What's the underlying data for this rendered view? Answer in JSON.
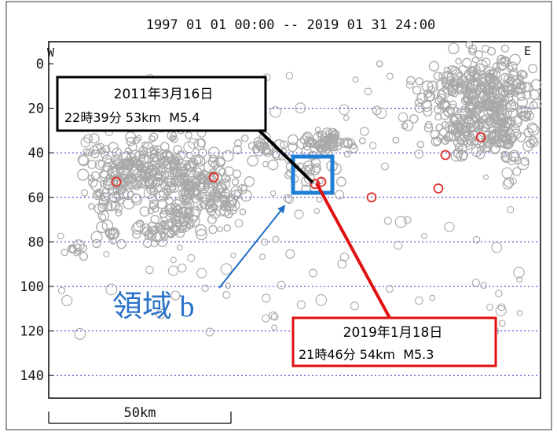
{
  "chart_data": {
    "type": "scatter",
    "title": "1997 01 01 00:00 -- 2019 01 31 24:00",
    "direction_labels": {
      "left": "W",
      "right": "E"
    },
    "y_ticks": [
      0,
      20,
      40,
      60,
      80,
      100,
      120,
      140
    ],
    "ylim": [
      0,
      150
    ],
    "y_inverted": true,
    "grid": "horizontal dotted blue",
    "scale_bar_label": "50km",
    "region_label": "領域 b",
    "colors": {
      "background_events": "#a9a9a9",
      "highlight_events": "#e0302a",
      "grid": "#2a2ad0",
      "region_box": "#1f7fd6",
      "region_arrow": "#1f6fc8",
      "callout_black": "#000000",
      "callout_red": "#e01010",
      "region_text": "#2a72c8"
    },
    "callouts": [
      {
        "date": "2011年3月16日",
        "detail": "22時39分 53km  M5.4",
        "border": "black"
      },
      {
        "date": "2019年1月18日",
        "detail": "21時46分 54km  M5.3",
        "border": "red"
      }
    ],
    "highlight_events_depth_km": [
      53,
      51,
      54,
      53,
      60,
      56,
      41,
      33
    ]
  }
}
